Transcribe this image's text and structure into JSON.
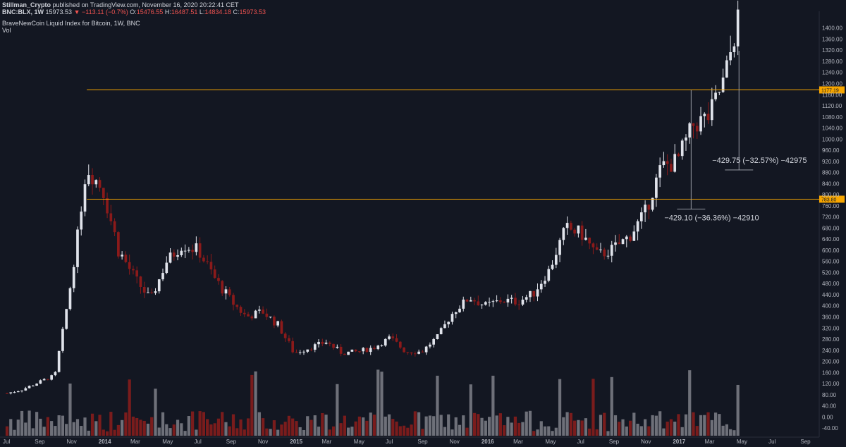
{
  "header": {
    "publisher": "Stillman_Crypto",
    "published_text": "published on TradingView.com, November 16, 2020 20:22:41 CET",
    "symbol": "BNC:BLX, 1W",
    "last": "15973.53",
    "change": "−113.11 (−0.7%)",
    "o_label": "O:",
    "o": "15476.55",
    "h_label": "H:",
    "h": "16487.51",
    "l_label": "L:",
    "l": "14834.18",
    "c_label": "C:",
    "c": "15973.53",
    "study_title": "BraveNewCoin Liquid Index for Bitcoin, 1W, BNC",
    "vol_label": "Vol"
  },
  "colors": {
    "background": "#131722",
    "up_candle": "#e0e3eb",
    "down_candle": "#8b1a1a",
    "up_volume": "#6e7079",
    "down_volume": "#7a1c1c",
    "level_line": "#f7a600",
    "axis_text": "#b2b5be"
  },
  "chart_data": {
    "type": "candlestick",
    "title": "BraveNewCoin Liquid Index for Bitcoin, 1W, BNC",
    "y_axis": {
      "ticks": [
        -40,
        0,
        40,
        80,
        120,
        160,
        200,
        240,
        280,
        320,
        360,
        400,
        440,
        480,
        520,
        560,
        600,
        640,
        680,
        720,
        760,
        800,
        840,
        880,
        920,
        960,
        1000,
        1040,
        1080,
        1120,
        1160,
        1200,
        1240,
        1280,
        1320,
        1360,
        1400
      ],
      "range": [
        -60,
        1450
      ]
    },
    "x_axis": {
      "labels": [
        "Jul",
        "Sep",
        "Nov",
        "2014",
        "Mar",
        "May",
        "Jul",
        "Sep",
        "Nov",
        "2015",
        "Mar",
        "May",
        "Jul",
        "Sep",
        "Nov",
        "2016",
        "Mar",
        "May",
        "Jul",
        "Sep",
        "Nov",
        "2017",
        "Mar",
        "May",
        "Jul",
        "Sep"
      ]
    },
    "levels": [
      {
        "label": "1177.19",
        "value": 1177.19
      },
      {
        "label": "783.80",
        "value": 783.8
      }
    ],
    "annotations": [
      {
        "text": "−429.10 (−36.36%) −42910",
        "value_from": 1177.19,
        "value_to": 748
      },
      {
        "text": "−429.75 (−32.57%) −42975",
        "value_from": 1318,
        "value_to": 889
      }
    ],
    "price_anchors": [
      {
        "date": "2013-07",
        "value": 85
      },
      {
        "date": "2013-08",
        "value": 100
      },
      {
        "date": "2013-09",
        "value": 125
      },
      {
        "date": "2013-10",
        "value": 150
      },
      {
        "date": "2013-11",
        "value": 480
      },
      {
        "date": "2013-12",
        "value": 900
      },
      {
        "date": "2014-01",
        "value": 820
      },
      {
        "date": "2014-02",
        "value": 600
      },
      {
        "date": "2014-03",
        "value": 500
      },
      {
        "date": "2014-04",
        "value": 420
      },
      {
        "date": "2014-05",
        "value": 560
      },
      {
        "date": "2014-06",
        "value": 620
      },
      {
        "date": "2014-07",
        "value": 600
      },
      {
        "date": "2014-08",
        "value": 500
      },
      {
        "date": "2014-09",
        "value": 420
      },
      {
        "date": "2014-10",
        "value": 360
      },
      {
        "date": "2014-11",
        "value": 380
      },
      {
        "date": "2014-12",
        "value": 330
      },
      {
        "date": "2015-01",
        "value": 230
      },
      {
        "date": "2015-02",
        "value": 250
      },
      {
        "date": "2015-03",
        "value": 270
      },
      {
        "date": "2015-04",
        "value": 230
      },
      {
        "date": "2015-05",
        "value": 235
      },
      {
        "date": "2015-06",
        "value": 250
      },
      {
        "date": "2015-07",
        "value": 285
      },
      {
        "date": "2015-08",
        "value": 235
      },
      {
        "date": "2015-09",
        "value": 235
      },
      {
        "date": "2015-10",
        "value": 290
      },
      {
        "date": "2015-11",
        "value": 380
      },
      {
        "date": "2015-12",
        "value": 430
      },
      {
        "date": "2016-01",
        "value": 400
      },
      {
        "date": "2016-02",
        "value": 420
      },
      {
        "date": "2016-03",
        "value": 415
      },
      {
        "date": "2016-04",
        "value": 445
      },
      {
        "date": "2016-05",
        "value": 530
      },
      {
        "date": "2016-06",
        "value": 680
      },
      {
        "date": "2016-07",
        "value": 660
      },
      {
        "date": "2016-08",
        "value": 580
      },
      {
        "date": "2016-09",
        "value": 605
      },
      {
        "date": "2016-10",
        "value": 650
      },
      {
        "date": "2016-11",
        "value": 735
      },
      {
        "date": "2016-12",
        "value": 900
      },
      {
        "date": "2017-01",
        "value": 920
      },
      {
        "date": "2017-02",
        "value": 1050
      },
      {
        "date": "2017-03",
        "value": 1080
      },
      {
        "date": "2017-04",
        "value": 1220
      },
      {
        "date": "2017-05",
        "value": 1480
      }
    ]
  }
}
